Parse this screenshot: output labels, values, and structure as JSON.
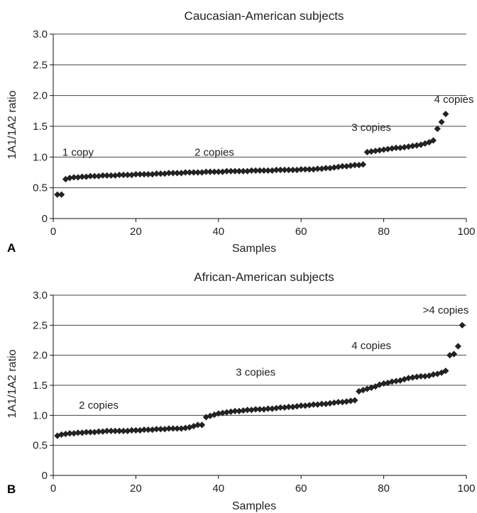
{
  "chart_data": [
    {
      "type": "scatter",
      "panel": "A",
      "title": "Caucasian-American subjects",
      "xlabel": "Samples",
      "ylabel": "1A1/1A2 ratio",
      "xlim": [
        0,
        100
      ],
      "ylim": [
        0,
        3.0
      ],
      "xticks": [
        0,
        20,
        40,
        60,
        80,
        100
      ],
      "yticks": [
        "0",
        "0.5",
        "1.0",
        "1.5",
        "2.0",
        "2.5",
        "3.0"
      ],
      "grid": "horizontal",
      "annotations": [
        {
          "text": "1 copy",
          "x": 6,
          "y": 1.08
        },
        {
          "text": "2 copies",
          "x": 39,
          "y": 1.08
        },
        {
          "text": "3 copies",
          "x": 77,
          "y": 1.48
        },
        {
          "text": "4 copies",
          "x": 97,
          "y": 1.94
        }
      ],
      "series": [
        {
          "x": [
            1,
            2,
            3,
            4,
            5,
            6,
            7,
            8,
            9,
            10,
            11,
            12,
            13,
            14,
            15,
            16,
            17,
            18,
            19,
            20,
            21,
            22,
            23,
            24,
            25,
            26,
            27,
            28,
            29,
            30,
            31,
            32,
            33,
            34,
            35,
            36,
            37,
            38,
            39,
            40,
            41,
            42,
            43,
            44,
            45,
            46,
            47,
            48,
            49,
            50,
            51,
            52,
            53,
            54,
            55,
            56,
            57,
            58,
            59,
            60,
            61,
            62,
            63,
            64,
            65,
            66,
            67,
            68,
            69,
            70,
            71,
            72,
            73,
            74,
            75,
            76,
            77,
            78,
            79,
            80,
            81,
            82,
            83,
            84,
            85,
            86,
            87,
            88,
            89,
            90,
            91,
            92,
            93,
            94,
            95
          ],
          "values": [
            0.39,
            0.39,
            0.64,
            0.66,
            0.67,
            0.67,
            0.68,
            0.68,
            0.69,
            0.69,
            0.69,
            0.7,
            0.7,
            0.7,
            0.7,
            0.71,
            0.71,
            0.71,
            0.71,
            0.72,
            0.72,
            0.72,
            0.72,
            0.72,
            0.73,
            0.73,
            0.73,
            0.74,
            0.74,
            0.74,
            0.74,
            0.75,
            0.75,
            0.75,
            0.75,
            0.75,
            0.76,
            0.76,
            0.76,
            0.76,
            0.76,
            0.77,
            0.77,
            0.77,
            0.77,
            0.77,
            0.77,
            0.78,
            0.78,
            0.78,
            0.78,
            0.78,
            0.78,
            0.79,
            0.79,
            0.79,
            0.79,
            0.79,
            0.79,
            0.8,
            0.8,
            0.8,
            0.8,
            0.81,
            0.81,
            0.82,
            0.82,
            0.83,
            0.84,
            0.85,
            0.85,
            0.86,
            0.87,
            0.87,
            0.88,
            1.08,
            1.09,
            1.1,
            1.11,
            1.12,
            1.13,
            1.14,
            1.15,
            1.15,
            1.16,
            1.17,
            1.18,
            1.19,
            1.2,
            1.22,
            1.24,
            1.27,
            1.46,
            1.57,
            1.7
          ]
        }
      ]
    },
    {
      "type": "scatter",
      "panel": "B",
      "title": "African-American subjects",
      "xlabel": "Samples",
      "ylabel": "1A1/1A2 ratio",
      "xlim": [
        0,
        100
      ],
      "ylim": [
        0,
        3.0
      ],
      "xticks": [
        0,
        20,
        40,
        60,
        80,
        100
      ],
      "yticks": [
        "0",
        "0.5",
        "1.0",
        "1.5",
        "2.0",
        "2.5",
        "3.0"
      ],
      "grid": "horizontal",
      "annotations": [
        {
          "text": "2 copies",
          "x": 11,
          "y": 1.17
        },
        {
          "text": "3 copies",
          "x": 49,
          "y": 1.72
        },
        {
          "text": "4 copies",
          "x": 77,
          "y": 2.16
        },
        {
          "text": ">4 copies",
          "x": 95,
          "y": 2.75
        }
      ],
      "series": [
        {
          "x": [
            1,
            2,
            3,
            4,
            5,
            6,
            7,
            8,
            9,
            10,
            11,
            12,
            13,
            14,
            15,
            16,
            17,
            18,
            19,
            20,
            21,
            22,
            23,
            24,
            25,
            26,
            27,
            28,
            29,
            30,
            31,
            32,
            33,
            34,
            35,
            36,
            37,
            38,
            39,
            40,
            41,
            42,
            43,
            44,
            45,
            46,
            47,
            48,
            49,
            50,
            51,
            52,
            53,
            54,
            55,
            56,
            57,
            58,
            59,
            60,
            61,
            62,
            63,
            64,
            65,
            66,
            67,
            68,
            69,
            70,
            71,
            72,
            73,
            74,
            75,
            76,
            77,
            78,
            79,
            80,
            81,
            82,
            83,
            84,
            85,
            86,
            87,
            88,
            89,
            90,
            91,
            92,
            93,
            94,
            95,
            96,
            97,
            98,
            99
          ],
          "values": [
            0.66,
            0.68,
            0.69,
            0.7,
            0.7,
            0.71,
            0.71,
            0.72,
            0.72,
            0.72,
            0.73,
            0.73,
            0.74,
            0.74,
            0.74,
            0.74,
            0.74,
            0.74,
            0.75,
            0.75,
            0.75,
            0.76,
            0.76,
            0.76,
            0.77,
            0.77,
            0.77,
            0.78,
            0.78,
            0.78,
            0.78,
            0.79,
            0.8,
            0.82,
            0.84,
            0.84,
            0.97,
            0.99,
            1.01,
            1.03,
            1.04,
            1.05,
            1.06,
            1.07,
            1.07,
            1.08,
            1.09,
            1.09,
            1.1,
            1.1,
            1.1,
            1.11,
            1.11,
            1.12,
            1.13,
            1.13,
            1.14,
            1.14,
            1.15,
            1.16,
            1.16,
            1.17,
            1.18,
            1.18,
            1.19,
            1.19,
            1.2,
            1.21,
            1.22,
            1.22,
            1.23,
            1.24,
            1.25,
            1.4,
            1.42,
            1.44,
            1.46,
            1.48,
            1.51,
            1.53,
            1.54,
            1.56,
            1.57,
            1.58,
            1.6,
            1.62,
            1.63,
            1.64,
            1.65,
            1.65,
            1.66,
            1.68,
            1.69,
            1.71,
            1.74,
            2.0,
            2.02,
            2.15,
            2.5
          ]
        }
      ]
    }
  ]
}
